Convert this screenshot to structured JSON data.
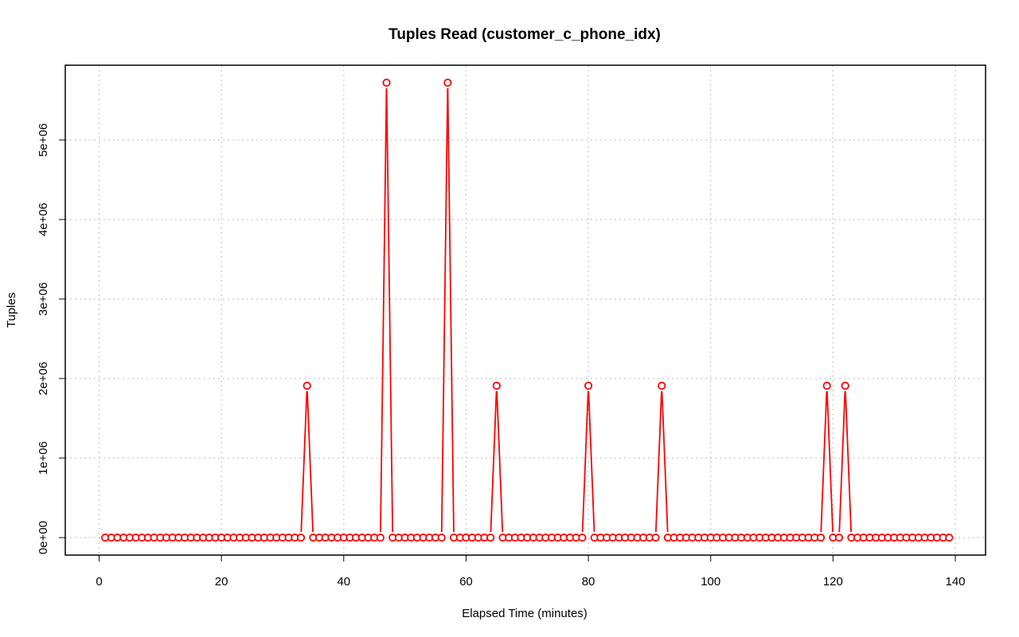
{
  "chart_data": {
    "type": "line",
    "title": "Tuples Read (customer_c_phone_idx)",
    "xlabel": "Elapsed Time (minutes)",
    "ylabel": "Tuples",
    "xlim": [
      0,
      140
    ],
    "ylim": [
      0,
      5800000
    ],
    "xticks": [
      0,
      20,
      40,
      60,
      80,
      100,
      120,
      140
    ],
    "xtick_labels": [
      "0",
      "20",
      "40",
      "60",
      "80",
      "100",
      "120",
      "140"
    ],
    "yticks": [
      0,
      1000000,
      2000000,
      3000000,
      4000000,
      5000000
    ],
    "ytick_labels": [
      "0e+00",
      "1e+06",
      "2e+06",
      "3e+06",
      "4e+06",
      "5e+06"
    ],
    "grid": true,
    "series_color": "#ff0000",
    "x_start": 1,
    "x_end": 139,
    "baseline_value": 0,
    "spikes": [
      {
        "x": 34,
        "y": 1910000
      },
      {
        "x": 47,
        "y": 5720000
      },
      {
        "x": 57,
        "y": 5720000
      },
      {
        "x": 65,
        "y": 1910000
      },
      {
        "x": 80,
        "y": 1910000
      },
      {
        "x": 92,
        "y": 1910000
      },
      {
        "x": 119,
        "y": 1910000
      },
      {
        "x": 122,
        "y": 1910000
      }
    ]
  }
}
